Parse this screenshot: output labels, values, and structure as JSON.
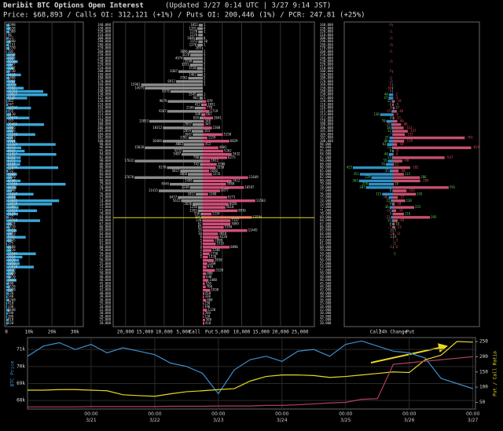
{
  "header": {
    "title": "Deribit BTC Options Open Interest",
    "updated": "(Updated 3/27 0:14 UTC | 3/27 9:14 JST)",
    "summary": "Price: $68,893 / Calls OI: 312,121 (+1%) / Puts OI: 200,446 (1%) / PCR: 247.81 (+25%)"
  },
  "chart_data": [
    {
      "type": "total",
      "color": "#3aa7d9",
      "values": [
        1398,
        1638,
        1309,
        96,
        621,
        1840,
        1151,
        1370,
        205,
        3710,
        3228,
        5016,
        2647,
        3367,
        1510,
        6418,
        1408,
        3783,
        4375,
        7592,
        16152,
        18027,
        9145,
        462,
        747,
        10797,
        455,
        2110,
        10075,
        157,
        16495,
        2966,
        3026,
        12672,
        2763,
        3964,
        21565,
        6523,
        8042,
        21857,
        6322,
        6372,
        6108,
        22694,
        752,
        4680,
        2570,
        6248,
        25946,
        4415,
        2398,
        11897,
        4099,
        23085,
        19938,
        5380,
        13434,
        5129,
        627,
        14769,
        2324,
        1419,
        4523,
        2493,
        8495,
        2345,
        375,
        2208,
        2210,
        12941,
        7024,
        5630,
        5850,
        12020,
        3410,
        2980,
        1870,
        4460,
        980,
        1520,
        2700,
        620,
        540,
        1260,
        410,
        330,
        1440,
        590,
        380,
        810,
        620
      ],
      "xlim": [
        0,
        33000
      ],
      "xticks": [
        0,
        {
          "value": 10000,
          "label": "10k"
        },
        {
          "value": 20000,
          "label": "20k"
        },
        {
          "value": 30000,
          "label": "30k"
        }
      ]
    },
    {
      "type": "butterfly",
      "categories": [
        "340,000",
        "330,000",
        "320,000",
        "310,000",
        "300,000",
        "290,000",
        "280,000",
        "270,000",
        "260,000",
        "250,000",
        "240,000",
        "230,000",
        "220,000",
        "210,000",
        "200,000",
        "190,000",
        "180,000",
        "170,000",
        "160,000",
        "150,000",
        "140,000",
        "130,000",
        "125,000",
        "120,000",
        "118,000",
        "116,000",
        "115,000",
        "114,000",
        "112,000",
        "110,000",
        "108,000",
        "106,000",
        "105,000",
        "104,000",
        "102,000",
        "100,000",
        "98,000",
        "96,000",
        "95,000",
        "94,000",
        "92,000",
        "90,000",
        "88,000",
        "86,000",
        "85,000",
        "84,000",
        "82,000",
        "80,000",
        "79,000",
        "78,000",
        "77,000",
        "76,000",
        "75,000",
        "74,000",
        "73,000",
        "72,000",
        "71,000",
        "70,000",
        "69,000",
        "68,000",
        "67,000",
        "66,000",
        "65,000",
        "64,000",
        "63,000",
        "62,000",
        "61,000",
        "60,000",
        "59,000",
        "58,000",
        "57,000",
        "56,000",
        "55,000",
        "54,000",
        "52,000",
        "50,000",
        "48,000",
        "46,000",
        "45,000",
        "44,000",
        "42,000",
        "40,000",
        "38,000",
        "36,000",
        "35,000",
        "34,000",
        "32,000",
        "30,000",
        "28,000",
        "25,000",
        "20,000"
      ],
      "series": [
        {
          "name": "Call",
          "color": "#8c8c8c",
          "values": [
            1052,
            1391,
            1178,
            1170,
            1846,
            1151,
            1370,
            205,
            3696,
            3228,
            4974,
            2590,
            3351,
            1510,
            6307,
            1462,
            3762,
            6912,
            15961,
            14975,
            8378,
            1545,
            862,
            9079,
            412,
            2108,
            9207,
            349,
            838,
            13853,
            2652,
            10312,
            2859,
            2602,
            3702,
            10406,
            4883,
            15028,
            5232,
            5487,
            780,
            17632,
            742,
            9270,
            5817,
            3860,
            17670,
            2498,
            8546,
            3349,
            11415,
            1812,
            6457,
            5612,
            2636,
            1250,
            1265,
            556,
            394,
            120,
            62,
            83,
            29,
            10,
            8,
            5,
            3,
            4,
            2,
            1,
            1,
            0,
            0,
            0,
            0,
            0,
            0,
            0,
            0,
            0,
            0,
            0,
            0,
            0,
            0,
            0,
            0,
            0,
            0,
            0,
            0
          ]
        },
        {
          "name": "Put",
          "color": "#d2507a",
          "values": [
            1,
            4,
            1,
            0,
            8,
            10,
            1,
            0,
            2,
            4,
            3,
            1,
            5,
            2,
            2,
            3,
            5,
            2,
            1,
            0,
            0,
            1,
            1,
            879,
            1051,
            770,
            1719,
            667,
            2641,
            348,
            345,
            2360,
            163,
            5158,
            1159,
            6829,
            412,
            4001,
            5262,
            7432,
            6275,
            1911,
            3598,
            3350,
            1650,
            2376,
            11649,
            7412,
            5988,
            10597,
            4477,
            1368,
            6271,
            13503,
            6656,
            5810,
            8936,
            2234,
            12594,
            7137,
            7099,
            5394,
            11445,
            3910,
            4120,
            2890,
            3315,
            6890,
            2240,
            1750,
            1320,
            2830,
            1160,
            970,
            3120,
            880,
            640,
            1480,
            520,
            760,
            1930,
            410,
            330,
            880,
            250,
            190,
            1120,
            340,
            220,
            560,
            410
          ]
        }
      ],
      "call_xlim": [
        0,
        23000
      ],
      "put_xlim": [
        0,
        28500
      ],
      "call_xticks": [
        {
          "value": 20000,
          "label": "20,000"
        },
        {
          "value": 15000,
          "label": "15,000"
        },
        {
          "value": 10000,
          "label": "10,000"
        },
        {
          "value": 5000,
          "label": "5,000"
        }
      ],
      "put_xticks": [
        {
          "value": 5000,
          "label": "5,000"
        },
        {
          "value": 10000,
          "label": "10,000"
        },
        {
          "value": 15000,
          "label": "15,000"
        },
        {
          "value": 20000,
          "label": "20,000"
        },
        {
          "value": 25000,
          "label": "25,000"
        }
      ],
      "price_line": 68893,
      "price_color": "#e8d820"
    },
    {
      "type": "change",
      "categories": [
        "340,000",
        "330,000",
        "320,000",
        "310,000",
        "300,000",
        "290,000",
        "280,000",
        "270,000",
        "260,000",
        "250,000",
        "240,000",
        "230,000",
        "220,000",
        "210,000",
        "200,000",
        "190,000",
        "180,000",
        "170,000",
        "160,000",
        "150,000",
        "140,000",
        "130,000",
        "125,000",
        "120,000",
        "118,000",
        "116,000",
        "115,000",
        "114,000",
        "112,000",
        "110,000",
        "108,000",
        "106,000",
        "105,000",
        "104,000",
        "102,000",
        "100,000",
        "98,000",
        "96,000",
        "95,000",
        "94,000",
        "92,000",
        "90,000",
        "88,000",
        "86,000",
        "85,000",
        "84,000",
        "82,000",
        "80,000",
        "79,000",
        "78,000",
        "77,000",
        "76,000",
        "75,000",
        "74,000",
        "73,000",
        "72,000",
        "71,000",
        "70,000",
        "69,000",
        "68,000",
        "67,000",
        "66,000",
        "65,000",
        "64,000",
        "63,000",
        "62,000",
        "61,000",
        "60,000",
        "59,000",
        "58,000",
        "57,000",
        "56,000",
        "55,000",
        "54,000",
        "52,000",
        "50,000",
        "48,000",
        "46,000",
        "45,000",
        "44,000",
        "42,000",
        "40,000",
        "38,000",
        "36,000",
        "35,000",
        "34,000",
        "32,000",
        "30,000",
        "28,000",
        "25,000",
        "20,000"
      ],
      "xlabel": "24h Change",
      "series": [
        {
          "name": "Call",
          "color": "#2f8fc4",
          "values": [
            -4,
            0,
            -1,
            0,
            -2,
            0,
            -3,
            0,
            -1,
            0,
            0,
            -2,
            0,
            0,
            -5,
            0,
            -1,
            -2,
            -5,
            -10,
            -6,
            44,
            47,
            12,
            -8,
            3,
            -15,
            136,
            4,
            70,
            -20,
            18,
            11,
            -7,
            37,
            46,
            62,
            13,
            8,
            44,
            12,
            55,
            76,
            425,
            35,
            351,
            229,
            362,
            258,
            287,
            6,
            115,
            -46,
            22,
            9,
            36,
            -14,
            5,
            -21,
            12,
            8,
            -7,
            3,
            -2,
            1,
            0,
            0,
            -1,
            0,
            0,
            0,
            0,
            0,
            0,
            0,
            0,
            0,
            0,
            0,
            0,
            0,
            0,
            0,
            0,
            0,
            0,
            0,
            0,
            0,
            0,
            0
          ]
        },
        {
          "name": "Put",
          "color": "#c8506e",
          "values": [
            0,
            0,
            0,
            0,
            0,
            0,
            0,
            0,
            0,
            0,
            0,
            0,
            0,
            0,
            0,
            0,
            0,
            0,
            0,
            0,
            0,
            -2,
            -3,
            -19,
            -9,
            17,
            -40,
            -8,
            -13,
            -46,
            -86,
            -113,
            -157,
            -125,
            -761,
            -119,
            -44,
            -829,
            -8,
            -6,
            -547,
            -99,
            12,
            -182,
            -60,
            115,
            286,
            -289,
            10,
            591,
            -143,
            243,
            -52,
            130,
            -18,
            225,
            -34,
            116,
            393,
            -49,
            18,
            -22,
            5,
            -11,
            8,
            -3,
            2,
            -6,
            0,
            1,
            0,
            0,
            0,
            0,
            0,
            0,
            0,
            0,
            0,
            0,
            0,
            0,
            0,
            0,
            0,
            0,
            0,
            0,
            0,
            0,
            0
          ]
        }
      ],
      "xlim": [
        -500,
        900
      ],
      "positive_color": "#5ad15a",
      "negative_color": "#e0485a"
    },
    {
      "type": "line",
      "x": [
        -24,
        -18,
        -12,
        -6,
        0,
        6,
        12,
        18,
        24,
        30,
        36,
        42,
        48,
        54,
        60,
        66,
        72,
        78,
        84,
        90,
        96,
        102,
        108,
        114,
        120,
        126,
        132,
        138,
        144
      ],
      "series": [
        {
          "color": "#3b8fd0",
          "values": [
            70600,
            71200,
            71400,
            71000,
            71300,
            70800,
            71100,
            70900,
            70700,
            70200,
            70000,
            69600,
            68400,
            69800,
            70400,
            70600,
            70300,
            70900,
            71000,
            70600,
            71300,
            71500,
            71200,
            70900,
            70800,
            70500,
            69300,
            69000,
            68700
          ]
        },
        {
          "color": "#e8d820",
          "axis": "y2",
          "values": [
            90,
            90,
            92,
            92,
            90,
            88,
            75,
            72,
            70,
            78,
            85,
            88,
            92,
            95,
            120,
            135,
            140,
            140,
            138,
            132,
            135,
            140,
            145,
            150,
            148,
            190,
            205,
            250,
            248
          ]
        },
        {
          "color": "#b04060",
          "axis": "y2",
          "values": [
            35,
            35,
            35,
            35,
            36,
            36,
            36,
            36,
            36,
            37,
            37,
            37,
            38,
            38,
            38,
            40,
            40,
            42,
            45,
            48,
            50,
            60,
            62,
            175,
            180,
            185,
            190,
            195,
            200
          ]
        }
      ],
      "xlim": [
        -24,
        145
      ],
      "xticks": [
        {
          "value": 0,
          "label": "00:00\n3/21"
        },
        {
          "value": 24,
          "label": "00:00\n3/22"
        },
        {
          "value": 48,
          "label": "00:00\n3/23"
        },
        {
          "value": 72,
          "label": "00:00\n3/24"
        },
        {
          "value": 96,
          "label": "00:00\n3/25"
        },
        {
          "value": 120,
          "label": "00:00\n3/26"
        },
        {
          "value": 144,
          "label": "00:00\n3/27"
        }
      ],
      "ylim": [
        67500,
        71700
      ],
      "yticks": [
        {
          "value": 68000,
          "label": "68k"
        },
        {
          "value": 69000,
          "label": "69k"
        },
        {
          "value": 70000,
          "label": "70k"
        },
        {
          "value": 71000,
          "label": "71k"
        }
      ],
      "y2lim": [
        28,
        263
      ],
      "y2ticks": [
        50,
        100,
        150,
        200,
        250
      ],
      "ylabel": "BTC Price",
      "y2label": "Put / Call Ratio"
    }
  ]
}
